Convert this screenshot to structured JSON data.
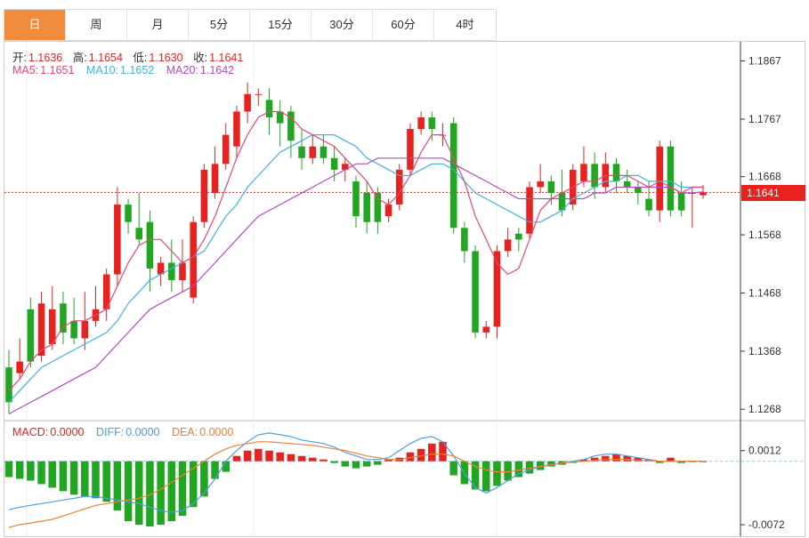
{
  "tabs": [
    "日",
    "周",
    "月",
    "5分",
    "15分",
    "30分",
    "60分",
    "4时"
  ],
  "active_tab": 0,
  "ohlc_info": {
    "open_label": "开:",
    "open": "1.1636",
    "high_label": "高:",
    "high": "1.1654",
    "low_label": "低:",
    "low": "1.1630",
    "close_label": "收:",
    "close": "1.1641"
  },
  "ma_info": {
    "ma5_label": "MA5:",
    "ma5": "1.1651",
    "ma10_label": "MA10:",
    "ma10": "1.1652",
    "ma20_label": "MA20:",
    "ma20": "1.1642"
  },
  "macd_info": {
    "macd_label": "MACD:",
    "macd": "0.0000",
    "diff_label": "DIFF:",
    "diff": "0.0000",
    "dea_label": "DEA:",
    "dea": "0.0000"
  },
  "current_price": "1.1641",
  "colors": {
    "up": "#e8231f",
    "down": "#21a621",
    "ma5": "#e8447a",
    "ma10": "#3bb4e0",
    "ma20": "#b04cc0",
    "diff": "#4aa0e0",
    "dea": "#f08030",
    "accent": "#f08c3c"
  },
  "chart_data": {
    "type": "candlestick",
    "price_axis": {
      "ticks": [
        "1.1867",
        "1.1767",
        "1.1668",
        "1.1568",
        "1.1468",
        "1.1368",
        "1.1268"
      ],
      "range": [
        1.125,
        1.19
      ]
    },
    "macd_axis": {
      "ticks": [
        "0.0012",
        "-0.0072"
      ],
      "range": [
        -0.0085,
        0.0045
      ]
    },
    "candles": [
      [
        1.134,
        1.128,
        1.137,
        1.126
      ],
      [
        1.133,
        1.135,
        1.139,
        1.132
      ],
      [
        1.144,
        1.135,
        1.146,
        1.134
      ],
      [
        1.136,
        1.145,
        1.147,
        1.135
      ],
      [
        1.138,
        1.144,
        1.148,
        1.137
      ],
      [
        1.145,
        1.14,
        1.147,
        1.138
      ],
      [
        1.142,
        1.139,
        1.146,
        1.138
      ],
      [
        1.139,
        1.142,
        1.147,
        1.137
      ],
      [
        1.142,
        1.144,
        1.148,
        1.141
      ],
      [
        1.144,
        1.15,
        1.151,
        1.142
      ],
      [
        1.15,
        1.162,
        1.165,
        1.148
      ],
      [
        1.162,
        1.159,
        1.163,
        1.157
      ],
      [
        1.158,
        1.156,
        1.164,
        1.155
      ],
      [
        1.159,
        1.151,
        1.161,
        1.147
      ],
      [
        1.15,
        1.152,
        1.153,
        1.148
      ],
      [
        1.152,
        1.149,
        1.156,
        1.147
      ],
      [
        1.149,
        1.152,
        1.156,
        1.147
      ],
      [
        1.146,
        1.159,
        1.16,
        1.145
      ],
      [
        1.159,
        1.168,
        1.169,
        1.158
      ],
      [
        1.164,
        1.169,
        1.172,
        1.163
      ],
      [
        1.169,
        1.174,
        1.176,
        1.168
      ],
      [
        1.172,
        1.178,
        1.179,
        1.17
      ],
      [
        1.178,
        1.181,
        1.183,
        1.176
      ],
      [
        1.181,
        1.181,
        1.182,
        1.179
      ],
      [
        1.18,
        1.177,
        1.182,
        1.174
      ],
      [
        1.178,
        1.176,
        1.18,
        1.172
      ],
      [
        1.178,
        1.173,
        1.179,
        1.17
      ],
      [
        1.172,
        1.17,
        1.175,
        1.168
      ],
      [
        1.17,
        1.172,
        1.174,
        1.169
      ],
      [
        1.172,
        1.17,
        1.174,
        1.169
      ],
      [
        1.17,
        1.168,
        1.172,
        1.166
      ],
      [
        1.168,
        1.169,
        1.17,
        1.166
      ],
      [
        1.166,
        1.16,
        1.167,
        1.158
      ],
      [
        1.164,
        1.159,
        1.166,
        1.157
      ],
      [
        1.164,
        1.159,
        1.165,
        1.157
      ],
      [
        1.16,
        1.162,
        1.163,
        1.159
      ],
      [
        1.162,
        1.168,
        1.169,
        1.161
      ],
      [
        1.168,
        1.175,
        1.176,
        1.167
      ],
      [
        1.175,
        1.177,
        1.178,
        1.174
      ],
      [
        1.177,
        1.175,
        1.178,
        1.173
      ],
      [
        1.174,
        1.174,
        1.176,
        1.172
      ],
      [
        1.176,
        1.158,
        1.177,
        1.157
      ],
      [
        1.158,
        1.154,
        1.159,
        1.152
      ],
      [
        1.154,
        1.14,
        1.155,
        1.139
      ],
      [
        1.14,
        1.141,
        1.142,
        1.139
      ],
      [
        1.141,
        1.154,
        1.155,
        1.139
      ],
      [
        1.154,
        1.156,
        1.158,
        1.153
      ],
      [
        1.157,
        1.156,
        1.158,
        1.154
      ],
      [
        1.157,
        1.165,
        1.166,
        1.156
      ],
      [
        1.165,
        1.166,
        1.169,
        1.164
      ],
      [
        1.166,
        1.164,
        1.167,
        1.162
      ],
      [
        1.164,
        1.161,
        1.168,
        1.16
      ],
      [
        1.162,
        1.168,
        1.169,
        1.161
      ],
      [
        1.166,
        1.169,
        1.172,
        1.165
      ],
      [
        1.169,
        1.165,
        1.171,
        1.163
      ],
      [
        1.165,
        1.169,
        1.171,
        1.164
      ],
      [
        1.169,
        1.166,
        1.17,
        1.164
      ],
      [
        1.166,
        1.165,
        1.168,
        1.164
      ],
      [
        1.165,
        1.164,
        1.166,
        1.162
      ],
      [
        1.163,
        1.161,
        1.166,
        1.16
      ],
      [
        1.161,
        1.172,
        1.173,
        1.159
      ],
      [
        1.172,
        1.161,
        1.173,
        1.16
      ],
      [
        1.164,
        1.161,
        1.166,
        1.16
      ],
      [
        1.164,
        1.164,
        1.165,
        1.158
      ],
      [
        1.1636,
        1.1641,
        1.1654,
        1.163
      ]
    ],
    "ma5": [
      1.13,
      1.132,
      1.135,
      1.137,
      1.138,
      1.141,
      1.142,
      1.142,
      1.143,
      1.144,
      1.148,
      1.152,
      1.155,
      1.156,
      1.156,
      1.154,
      1.152,
      1.153,
      1.156,
      1.16,
      1.165,
      1.17,
      1.174,
      1.177,
      1.178,
      1.178,
      1.177,
      1.175,
      1.174,
      1.173,
      1.172,
      1.17,
      1.168,
      1.166,
      1.163,
      1.162,
      1.164,
      1.167,
      1.171,
      1.174,
      1.174,
      1.17,
      1.166,
      1.16,
      1.156,
      1.152,
      1.15,
      1.151,
      1.156,
      1.161,
      1.163,
      1.164,
      1.165,
      1.166,
      1.166,
      1.167,
      1.167,
      1.167,
      1.166,
      1.165,
      1.166,
      1.165,
      1.164,
      1.165,
      1.165
    ],
    "ma10": [
      1.128,
      1.13,
      1.132,
      1.134,
      1.135,
      1.136,
      1.137,
      1.138,
      1.139,
      1.14,
      1.142,
      1.145,
      1.147,
      1.149,
      1.15,
      1.151,
      1.152,
      1.153,
      1.154,
      1.157,
      1.16,
      1.162,
      1.165,
      1.167,
      1.169,
      1.171,
      1.172,
      1.173,
      1.174,
      1.174,
      1.174,
      1.173,
      1.172,
      1.17,
      1.169,
      1.168,
      1.167,
      1.167,
      1.168,
      1.169,
      1.169,
      1.168,
      1.166,
      1.164,
      1.163,
      1.162,
      1.161,
      1.16,
      1.159,
      1.159,
      1.16,
      1.161,
      1.163,
      1.164,
      1.165,
      1.166,
      1.166,
      1.167,
      1.167,
      1.166,
      1.166,
      1.166,
      1.165,
      1.165,
      1.165
    ],
    "ma20": [
      1.126,
      1.127,
      1.128,
      1.129,
      1.13,
      1.131,
      1.132,
      1.133,
      1.134,
      1.136,
      1.138,
      1.14,
      1.142,
      1.144,
      1.145,
      1.146,
      1.147,
      1.148,
      1.15,
      1.152,
      1.154,
      1.156,
      1.158,
      1.16,
      1.161,
      1.162,
      1.163,
      1.164,
      1.165,
      1.166,
      1.167,
      1.168,
      1.169,
      1.169,
      1.17,
      1.17,
      1.17,
      1.17,
      1.17,
      1.17,
      1.17,
      1.169,
      1.168,
      1.167,
      1.166,
      1.165,
      1.164,
      1.163,
      1.163,
      1.163,
      1.163,
      1.163,
      1.163,
      1.163,
      1.164,
      1.164,
      1.165,
      1.165,
      1.165,
      1.165,
      1.165,
      1.165,
      1.164,
      1.164,
      1.1642
    ],
    "macd": [
      -0.0018,
      -0.002,
      -0.0022,
      -0.0026,
      -0.003,
      -0.0034,
      -0.0038,
      -0.004,
      -0.0042,
      -0.0046,
      -0.0056,
      -0.0068,
      -0.0072,
      -0.0074,
      -0.0072,
      -0.0068,
      -0.0062,
      -0.0052,
      -0.004,
      -0.002,
      -0.0012,
      0.0006,
      0.0012,
      0.0014,
      0.0012,
      0.001,
      0.0008,
      0.0006,
      0.0004,
      0.0002,
      -0.0002,
      -0.0006,
      -0.0008,
      -0.0006,
      -0.0004,
      0.0002,
      0.0004,
      0.001,
      0.0014,
      0.002,
      0.0022,
      -0.0016,
      -0.0026,
      -0.0032,
      -0.0034,
      -0.0028,
      -0.0022,
      -0.0018,
      -0.0014,
      -0.001,
      -0.0006,
      -0.0004,
      -0.0002,
      0.0002,
      0.0004,
      0.0006,
      0.0008,
      0.0006,
      0.0004,
      0.0002,
      -0.0002,
      0.0004,
      -0.0002,
      0.0,
      0.0
    ],
    "diff": [
      -0.0055,
      -0.0052,
      -0.005,
      -0.0048,
      -0.0046,
      -0.0044,
      -0.0042,
      -0.004,
      -0.004,
      -0.0042,
      -0.0044,
      -0.0046,
      -0.0048,
      -0.0052,
      -0.0056,
      -0.0058,
      -0.0056,
      -0.0048,
      -0.0036,
      -0.002,
      0.0,
      0.0012,
      0.0022,
      0.003,
      0.0032,
      0.003,
      0.0028,
      0.0024,
      0.0022,
      0.002,
      0.0016,
      0.001,
      0.0006,
      0.0002,
      0.0002,
      0.0004,
      0.0012,
      0.002,
      0.0026,
      0.0028,
      0.0022,
      0.0006,
      -0.0014,
      -0.003,
      -0.0036,
      -0.003,
      -0.0022,
      -0.0014,
      -0.001,
      -0.0006,
      -0.0004,
      -0.0002,
      0.0,
      0.0002,
      0.0006,
      0.0008,
      0.0008,
      0.0006,
      0.0004,
      0.0002,
      0.0,
      0.0,
      0.0,
      0.0,
      0.0
    ],
    "dea": [
      -0.0075,
      -0.0072,
      -0.007,
      -0.0068,
      -0.0066,
      -0.0062,
      -0.0058,
      -0.0054,
      -0.005,
      -0.0048,
      -0.0046,
      -0.0044,
      -0.0042,
      -0.0038,
      -0.0032,
      -0.0024,
      -0.0016,
      -0.0008,
      0.0,
      0.0008,
      0.0014,
      0.0018,
      0.002,
      0.0022,
      0.0022,
      0.0021,
      0.002,
      0.0019,
      0.0018,
      0.0016,
      0.0014,
      0.0012,
      0.0009,
      0.0006,
      0.0004,
      0.0002,
      0.0002,
      0.0004,
      0.0006,
      0.0008,
      0.0008,
      0.0006,
      0.0,
      -0.0006,
      -0.001,
      -0.0012,
      -0.0012,
      -0.001,
      -0.0008,
      -0.0006,
      -0.0004,
      -0.0002,
      -0.0001,
      0.0,
      0.0001,
      0.0002,
      0.0002,
      0.0002,
      0.0001,
      0.0001,
      0.0,
      0.0,
      0.0,
      0.0,
      0.0
    ]
  }
}
